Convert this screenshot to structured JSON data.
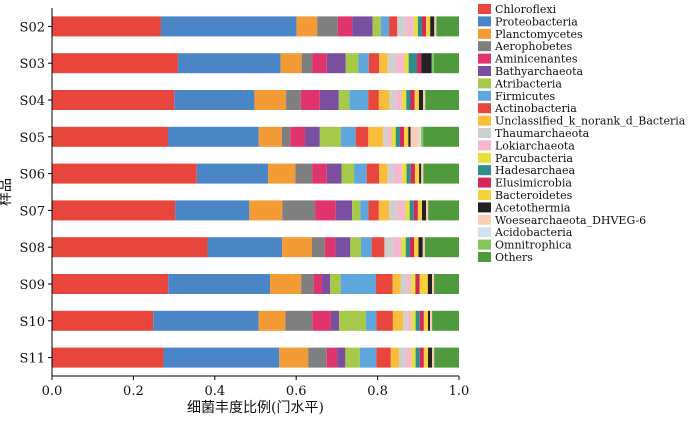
{
  "chart_data": {
    "type": "bar",
    "orientation": "horizontal",
    "stacked": true,
    "title": "",
    "xlabel": "细菌丰度比例(门水平)",
    "ylabel": "样品",
    "xlim": [
      0,
      1
    ],
    "xticks": [
      "0.0",
      "0.2",
      "0.4",
      "0.6",
      "0.8",
      "1.0"
    ],
    "legend_position": "right",
    "grid": false,
    "categories": [
      "S02",
      "S03",
      "S04",
      "S05",
      "S06",
      "S07",
      "S08",
      "S09",
      "S10",
      "S11"
    ],
    "series": [
      {
        "name": "Chloroflexi",
        "color": "#e8453c",
        "values": [
          0.265,
          0.3,
          0.29,
          0.275,
          0.345,
          0.3,
          0.365,
          0.28,
          0.245,
          0.27
        ]
      },
      {
        "name": "Proteobacteria",
        "color": "#4a86c6",
        "values": [
          0.33,
          0.245,
          0.19,
          0.215,
          0.17,
          0.18,
          0.175,
          0.245,
          0.255,
          0.28
        ]
      },
      {
        "name": "Planctomycetes",
        "color": "#f39b35",
        "values": [
          0.05,
          0.05,
          0.075,
          0.055,
          0.065,
          0.08,
          0.07,
          0.075,
          0.065,
          0.07
        ]
      },
      {
        "name": "Aerophobetes",
        "color": "#7f7f7f",
        "values": [
          0.05,
          0.025,
          0.035,
          0.02,
          0.04,
          0.08,
          0.03,
          0.03,
          0.065,
          0.045
        ]
      },
      {
        "name": "Aminicenantes",
        "color": "#e0356c",
        "values": [
          0.035,
          0.035,
          0.045,
          0.035,
          0.035,
          0.05,
          0.025,
          0.02,
          0.045,
          0.025
        ]
      },
      {
        "name": "Bathyarchaeota",
        "color": "#7b4fa0",
        "values": [
          0.05,
          0.045,
          0.045,
          0.035,
          0.035,
          0.04,
          0.035,
          0.02,
          0.02,
          0.02
        ]
      },
      {
        "name": "Atribacteria",
        "color": "#a6c94a",
        "values": [
          0.02,
          0.03,
          0.025,
          0.05,
          0.03,
          0.02,
          0.025,
          0.025,
          0.065,
          0.035
        ]
      },
      {
        "name": "Firmicutes",
        "color": "#5ea6dc",
        "values": [
          0.02,
          0.025,
          0.045,
          0.035,
          0.03,
          0.02,
          0.025,
          0.085,
          0.025,
          0.04
        ]
      },
      {
        "name": "Actinobacteria",
        "color": "#e8453c",
        "values": [
          0.02,
          0.025,
          0.025,
          0.03,
          0.03,
          0.025,
          0.03,
          0.04,
          0.04,
          0.035
        ]
      },
      {
        "name": "Unclassified_k_norank_d_Bacteria",
        "color": "#f8be3a",
        "values": [
          0.0,
          0.02,
          0.025,
          0.035,
          0.02,
          0.025,
          0.0,
          0.02,
          0.025,
          0.02
        ]
      },
      {
        "name": "Thaumarchaeota",
        "color": "#cfcfcf",
        "values": [
          0.02,
          0.02,
          0.015,
          0.01,
          0.015,
          0.02,
          0.02,
          0.015,
          0.01,
          0.015
        ]
      },
      {
        "name": "Lokiarchaeota",
        "color": "#f5b8cf",
        "values": [
          0.02,
          0.02,
          0.015,
          0.01,
          0.02,
          0.02,
          0.02,
          0.01,
          0.01,
          0.015
        ]
      },
      {
        "name": "Parcubacteria",
        "color": "#e8e03a",
        "values": [
          0.01,
          0.01,
          0.01,
          0.01,
          0.01,
          0.01,
          0.01,
          0.01,
          0.01,
          0.01
        ]
      },
      {
        "name": "Hadesarchaea",
        "color": "#2e8f8a",
        "values": [
          0.01,
          0.02,
          0.01,
          0.01,
          0.01,
          0.01,
          0.01,
          0.0,
          0.01,
          0.01
        ]
      },
      {
        "name": "Elusimicrobia",
        "color": "#d4285a",
        "values": [
          0.01,
          0.01,
          0.01,
          0.01,
          0.01,
          0.01,
          0.01,
          0.01,
          0.01,
          0.01
        ]
      },
      {
        "name": "Bacteroidetes",
        "color": "#f5d13a",
        "values": [
          0.01,
          0.0,
          0.01,
          0.01,
          0.01,
          0.01,
          0.01,
          0.02,
          0.01,
          0.01
        ]
      },
      {
        "name": "Acetothermia",
        "color": "#222222",
        "values": [
          0.01,
          0.025,
          0.01,
          0.005,
          0.005,
          0.01,
          0.01,
          0.01,
          0.005,
          0.01
        ]
      },
      {
        "name": "Woesearchaeota_DHVEG-6",
        "color": "#f9cdb8",
        "values": [
          0.005,
          0.0,
          0.005,
          0.02,
          0.005,
          0.005,
          0.005,
          0.005,
          0.005,
          0.005
        ]
      },
      {
        "name": "Acidobacteria",
        "color": "#d2e2ee",
        "values": [
          0.0,
          0.0,
          0.0,
          0.005,
          0.0,
          0.0,
          0.0,
          0.0,
          0.0,
          0.0
        ]
      },
      {
        "name": "Omnitrophica",
        "color": "#86c55a",
        "values": [
          0.0,
          0.005,
          0.0,
          0.005,
          0.0,
          0.0,
          0.0,
          0.0,
          0.0,
          0.0
        ]
      },
      {
        "name": "Others",
        "color": "#4f9a3c",
        "values": [
          0.055,
          0.06,
          0.08,
          0.085,
          0.085,
          0.075,
          0.08,
          0.06,
          0.065,
          0.06
        ]
      }
    ]
  }
}
